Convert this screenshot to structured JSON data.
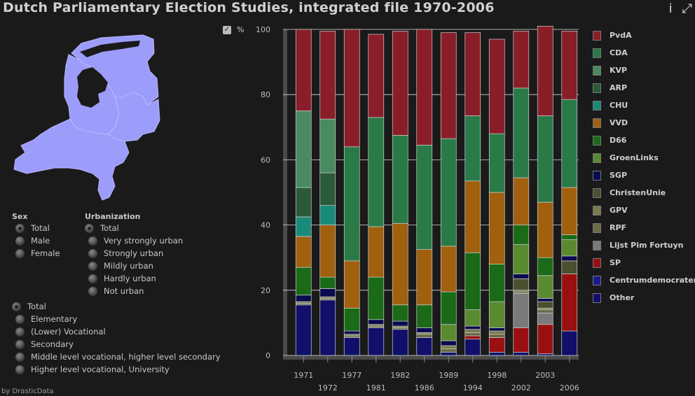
{
  "title": "Dutch Parliamentary Election Studies, integrated file 1970-2006",
  "icons": {
    "info": "info-icon",
    "fullscreen": "fullscreen-icon"
  },
  "sex": {
    "title": "Sex",
    "options": [
      {
        "label": "Total",
        "selected": true
      },
      {
        "label": "Male",
        "selected": false
      },
      {
        "label": "Female",
        "selected": false
      }
    ]
  },
  "urbanization": {
    "title": "Urbanization",
    "options": [
      {
        "label": "Total",
        "selected": true
      },
      {
        "label": "Very strongly urban",
        "selected": false
      },
      {
        "label": "Strongly urban",
        "selected": false
      },
      {
        "label": "Mildly urban",
        "selected": false
      },
      {
        "label": "Hardly urban",
        "selected": false
      },
      {
        "label": "Not urban",
        "selected": false
      }
    ]
  },
  "education": {
    "options": [
      {
        "label": "Total",
        "selected": true
      },
      {
        "label": "Elementary",
        "selected": false
      },
      {
        "label": "(Lower) Vocational",
        "selected": false
      },
      {
        "label": "Secondary",
        "selected": false
      },
      {
        "label": "Middle level vocational, higher level secondary",
        "selected": false
      },
      {
        "label": "Higher level vocational, University",
        "selected": false
      }
    ]
  },
  "percent_toggle": {
    "label": "%",
    "checked": true
  },
  "credit": "by DrasticData",
  "chart_data": {
    "type": "bar",
    "stacked": true,
    "categories": [
      "1971",
      "1972",
      "1977",
      "1981",
      "1982",
      "1986",
      "1989",
      "1994",
      "1998",
      "2002",
      "2003",
      "2006"
    ],
    "ylim": [
      0,
      100
    ],
    "yticks": [
      0,
      20,
      40,
      60,
      80,
      100
    ],
    "legend_position": "right",
    "series": [
      {
        "name": "Other",
        "color": "#10106a",
        "values": [
          15.5,
          17,
          5.5,
          8.5,
          8,
          5.5,
          1,
          5,
          1,
          1,
          0.5,
          7.5
        ]
      },
      {
        "name": "Centrumdemocraten",
        "color": "#1a1a90",
        "values": [
          0,
          0,
          0,
          0,
          0,
          0,
          0,
          0,
          0,
          0,
          0,
          0
        ]
      },
      {
        "name": "SP",
        "color": "#9a1010",
        "values": [
          0,
          0,
          0,
          0,
          0,
          0,
          0,
          1,
          4.5,
          7.5,
          9,
          17.5
        ]
      },
      {
        "name": "Lijst Pim Fortuyn",
        "color": "#7a7a7a",
        "values": [
          0,
          0,
          0,
          0,
          0,
          0,
          0,
          0,
          0,
          10.5,
          3.5,
          0
        ]
      },
      {
        "name": "RPF",
        "color": "#6a6a48",
        "values": [
          0.5,
          0.5,
          0.5,
          0.5,
          0.5,
          1,
          1,
          1,
          1,
          0.5,
          1,
          0
        ]
      },
      {
        "name": "GPV",
        "color": "#7a7a50",
        "values": [
          0.5,
          0.5,
          0.5,
          0.5,
          0.5,
          0.5,
          1,
          1,
          1,
          0.5,
          0.5,
          0
        ]
      },
      {
        "name": "ChristenUnie",
        "color": "#4a5030",
        "values": [
          0,
          0,
          0,
          0,
          0,
          0,
          0,
          0,
          0,
          3.5,
          2,
          4
        ]
      },
      {
        "name": "SGP",
        "color": "#0a0a50",
        "values": [
          2,
          2.5,
          1,
          1.5,
          1.5,
          1.5,
          1.5,
          1,
          1,
          1.5,
          1,
          1.5
        ]
      },
      {
        "name": "GroenLinks",
        "color": "#5a8a30",
        "values": [
          0,
          0,
          0,
          0,
          0,
          0,
          5,
          5,
          8,
          9,
          7,
          5
        ]
      },
      {
        "name": "D66",
        "color": "#1a6a18",
        "values": [
          8.5,
          3.5,
          7,
          13,
          5,
          7,
          10,
          17.5,
          11.5,
          6,
          5.5,
          1.5
        ]
      },
      {
        "name": "VVD",
        "color": "#a0600e",
        "values": [
          9.5,
          16,
          14.5,
          15.5,
          25,
          17,
          14,
          22,
          22,
          14.5,
          17,
          14.5
        ]
      },
      {
        "name": "CHU",
        "color": "#1a8a78",
        "values": [
          6,
          6,
          0,
          0,
          0,
          0,
          0,
          0,
          0,
          0,
          0,
          0
        ]
      },
      {
        "name": "ARP",
        "color": "#2a5a38",
        "values": [
          9,
          10,
          0,
          0,
          0,
          0,
          0,
          0,
          0,
          0,
          0,
          0
        ]
      },
      {
        "name": "KVP",
        "color": "#4a8a60",
        "values": [
          23.5,
          16.5,
          0,
          0,
          0,
          0,
          0,
          0,
          0,
          0,
          0,
          0
        ]
      },
      {
        "name": "CDA",
        "color": "#2a7a48",
        "values": [
          0,
          0,
          35,
          33.5,
          27,
          32,
          33,
          20,
          18,
          27.5,
          26.5,
          27
        ]
      },
      {
        "name": "PvdA",
        "color": "#8a1e28",
        "values": [
          25,
          27,
          36,
          25.5,
          32,
          35.5,
          32.5,
          25.5,
          29,
          17.5,
          27.5,
          21
        ]
      }
    ]
  },
  "legend_order": [
    "PvdA",
    "CDA",
    "KVP",
    "ARP",
    "CHU",
    "VVD",
    "D66",
    "GroenLinks",
    "SGP",
    "ChristenUnie",
    "GPV",
    "RPF",
    "Lijst Pim Fortuyn",
    "SP",
    "Centrumdemocraten",
    "Other"
  ]
}
